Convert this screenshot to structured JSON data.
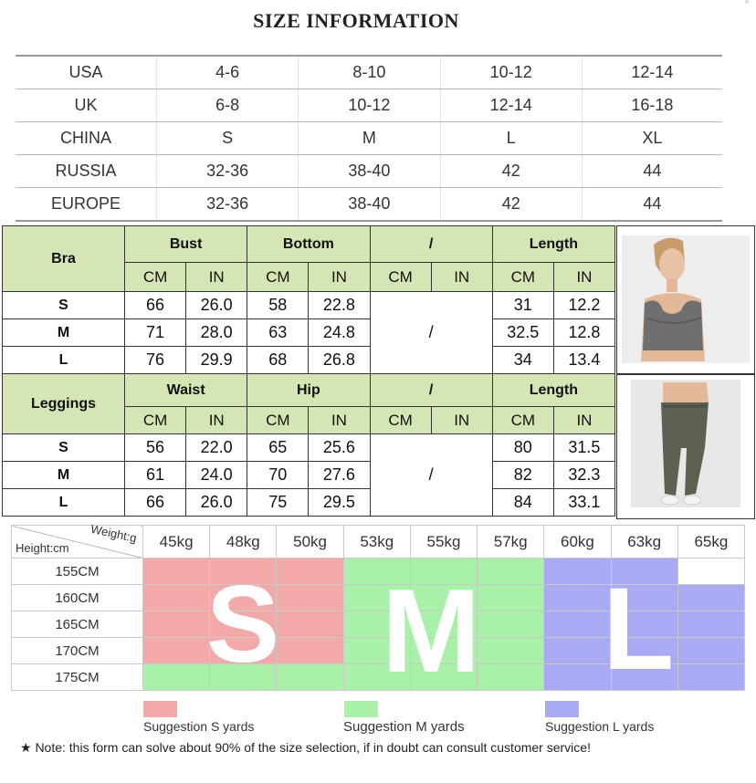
{
  "title": "SIZE INFORMATION",
  "conversion": [
    {
      "label": "USA",
      "values": [
        "4-6",
        "8-10",
        "10-12",
        "12-14"
      ]
    },
    {
      "label": "UK",
      "values": [
        "6-8",
        "10-12",
        "12-14",
        "16-18"
      ]
    },
    {
      "label": "CHINA",
      "values": [
        "S",
        "M",
        "L",
        "XL"
      ]
    },
    {
      "label": "RUSSIA",
      "values": [
        "32-36",
        "38-40",
        "42",
        "44"
      ]
    },
    {
      "label": "EUROPE",
      "values": [
        "32-36",
        "38-40",
        "42",
        "44"
      ]
    }
  ],
  "bra": {
    "label": "Bra",
    "columns": [
      "Bust",
      "Bottom",
      "/",
      "Length"
    ],
    "units": [
      "CM",
      "IN",
      "CM",
      "IN",
      "CM",
      "IN",
      "CM",
      "IN"
    ],
    "slash": "/",
    "rows": [
      {
        "size": "S",
        "c1": [
          "66",
          "26.0"
        ],
        "c2": [
          "58",
          "22.8"
        ],
        "c4": [
          "31",
          "12.2"
        ]
      },
      {
        "size": "M",
        "c1": [
          "71",
          "28.0"
        ],
        "c2": [
          "63",
          "24.8"
        ],
        "c4": [
          "32.5",
          "12.8"
        ]
      },
      {
        "size": "L",
        "c1": [
          "76",
          "29.9"
        ],
        "c2": [
          "68",
          "26.8"
        ],
        "c4": [
          "34",
          "13.4"
        ]
      }
    ]
  },
  "leggings": {
    "label": "Leggings",
    "columns": [
      "Waist",
      "Hip",
      "/",
      "Length"
    ],
    "units": [
      "CM",
      "IN",
      "CM",
      "IN",
      "CM",
      "IN",
      "CM",
      "IN"
    ],
    "slash": "/",
    "rows": [
      {
        "size": "S",
        "c1": [
          "56",
          "22.0"
        ],
        "c2": [
          "65",
          "25.6"
        ],
        "c4": [
          "80",
          "31.5"
        ]
      },
      {
        "size": "M",
        "c1": [
          "61",
          "24.0"
        ],
        "c2": [
          "70",
          "27.6"
        ],
        "c4": [
          "82",
          "32.3"
        ]
      },
      {
        "size": "L",
        "c1": [
          "66",
          "26.0"
        ],
        "c2": [
          "75",
          "29.5"
        ],
        "c4": [
          "84",
          "33.1"
        ]
      }
    ]
  },
  "grid": {
    "weight_label": "Weight:g",
    "height_label": "Height:cm",
    "weights": [
      "45kg",
      "48kg",
      "50kg",
      "53kg",
      "55kg",
      "57kg",
      "60kg",
      "63kg",
      "65kg"
    ],
    "heights": [
      "155CM",
      "160CM",
      "165CM",
      "170CM",
      "175CM"
    ],
    "big_letters": [
      "S",
      "M",
      "L"
    ]
  },
  "legend": [
    {
      "label": "Suggestion S yards",
      "color": "#f4a9a9"
    },
    {
      "label": "Suggestion M yards",
      "color": "#a9f0a9"
    },
    {
      "label": "Suggestion L yards",
      "color": "#aaaaf4"
    }
  ],
  "note": "★ Note: this form can solve about 90% of the size selection, if in doubt can consult customer service!",
  "colors": {
    "header_green": "#d6e5b4",
    "s_pink": "#f4a9a9",
    "m_green": "#a9f0a9",
    "l_blue": "#aaaaf4"
  }
}
